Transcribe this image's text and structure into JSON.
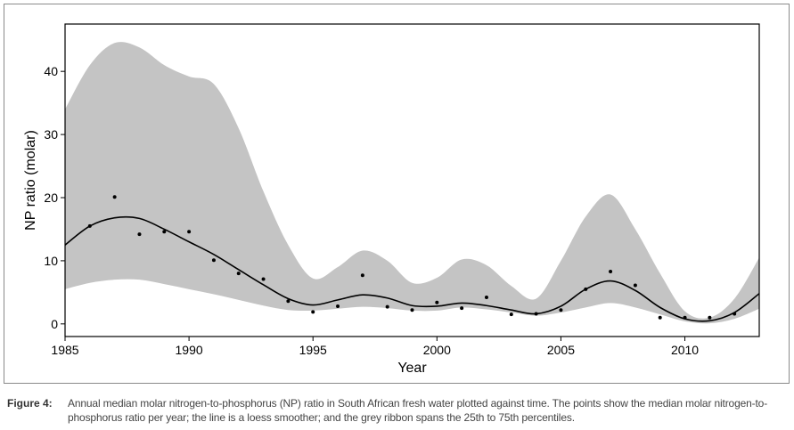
{
  "chart_data": {
    "type": "scatter",
    "xlabel": "Year",
    "ylabel": "NP ratio (molar)",
    "xlim": [
      1985,
      2013
    ],
    "ylim": [
      -2,
      47.5
    ],
    "xticks": [
      1985,
      1990,
      1995,
      2000,
      2005,
      2010
    ],
    "yticks": [
      0,
      10,
      20,
      30,
      40
    ],
    "grid": false,
    "colors": {
      "points": "#000000",
      "smoother": "#000000",
      "ribbon": "#c4c4c4"
    },
    "points": {
      "x": [
        1986,
        1987,
        1988,
        1989,
        1990,
        1991,
        1992,
        1993,
        1994,
        1995,
        1996,
        1997,
        1998,
        1999,
        2000,
        2001,
        2002,
        2003,
        2004,
        2005,
        2006,
        2007,
        2008,
        2009,
        2010,
        2011,
        2012
      ],
      "y": [
        15.5,
        20.1,
        14.2,
        14.6,
        14.6,
        10.1,
        8.0,
        7.1,
        3.6,
        1.9,
        2.8,
        7.7,
        2.7,
        2.2,
        3.4,
        2.5,
        4.2,
        1.5,
        1.6,
        2.2,
        5.5,
        8.3,
        6.1,
        1.0,
        1.0,
        1.0,
        1.6
      ]
    },
    "smoother": {
      "x": [
        1985,
        1986,
        1987,
        1988,
        1989,
        1990,
        1991,
        1992,
        1993,
        1994,
        1995,
        1996,
        1997,
        1998,
        1999,
        2000,
        2001,
        2002,
        2003,
        2004,
        2005,
        2006,
        2007,
        2008,
        2009,
        2010,
        2011,
        2012,
        2013
      ],
      "y": [
        12.5,
        15.5,
        16.8,
        16.7,
        15.0,
        13.0,
        11.0,
        8.6,
        6.2,
        4.0,
        3.0,
        3.8,
        4.6,
        4.1,
        2.9,
        2.8,
        3.3,
        2.9,
        2.2,
        1.6,
        2.8,
        5.5,
        6.8,
        5.3,
        2.6,
        0.8,
        0.5,
        1.8,
        4.8
      ]
    },
    "ribbon": {
      "x": [
        1985,
        1986,
        1987,
        1988,
        1989,
        1990,
        1991,
        1992,
        1993,
        1994,
        1995,
        1996,
        1997,
        1998,
        1999,
        2000,
        2001,
        2002,
        2003,
        2004,
        2005,
        2006,
        2007,
        2008,
        2009,
        2010,
        2011,
        2012,
        2013
      ],
      "lower": [
        5.5,
        6.5,
        7.0,
        7.0,
        6.3,
        5.5,
        4.7,
        3.8,
        2.9,
        2.2,
        2.1,
        2.4,
        2.7,
        2.5,
        2.1,
        2.1,
        2.6,
        2.3,
        1.8,
        1.3,
        1.8,
        2.6,
        3.3,
        2.6,
        1.5,
        0.4,
        0.1,
        0.8,
        2.4
      ],
      "upper": [
        34.0,
        41.0,
        44.5,
        43.8,
        41.0,
        39.2,
        38.0,
        31.0,
        21.0,
        12.5,
        7.2,
        9.0,
        11.6,
        10.0,
        6.5,
        7.3,
        10.2,
        9.3,
        6.0,
        4.0,
        10.0,
        17.0,
        20.5,
        15.0,
        8.0,
        2.0,
        1.0,
        4.0,
        10.5
      ]
    }
  },
  "caption": {
    "label": "Figure 4:",
    "text": "Annual median molar nitrogen-to-phosphorus (NP) ratio in South African fresh water plotted against time. The points show the median molar nitrogen-to-phosphorus ratio per year; the line is a loess smoother; and the grey ribbon spans the 25th to 75th percentiles."
  }
}
